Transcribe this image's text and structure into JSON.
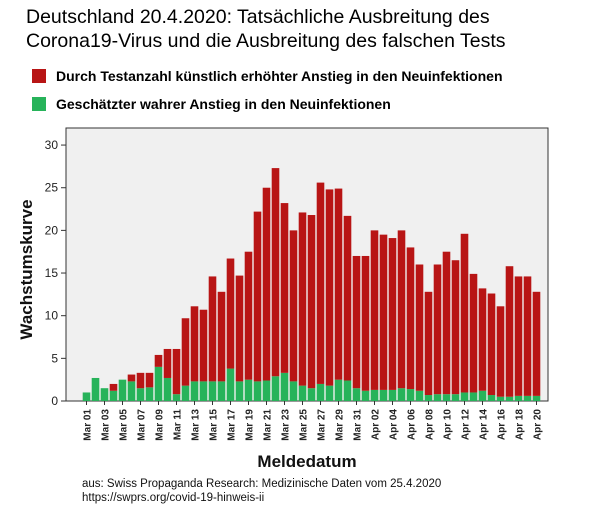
{
  "colors": {
    "red": "#b81515",
    "green": "#27b35a",
    "plot_bg": "#f0f0f0"
  },
  "header": {
    "title_line1": "Deutschland 20.4.2020: Tatsächliche Ausbreitung des",
    "title_line2": "Corona19-Virus und die Ausbreitung des falschen Tests"
  },
  "legend": [
    {
      "label": "Durch Testanzahl künstlich erhöhter Anstieg in den Neuinfektionen",
      "color": "#b81515"
    },
    {
      "label": "Geschätzter wahrer Anstieg in den Neuinfektionen",
      "color": "#27b35a"
    }
  ],
  "source": {
    "line1": "aus: Swiss Propaganda Research: Medizinische Daten vom 25.4.2020",
    "line2": "https://swprs.org/covid-19-hinweis-ii"
  },
  "chart_data": {
    "type": "bar",
    "stacked": true,
    "xlabel": "Meldedatum",
    "ylabel": "Wachstumskurve",
    "ylim": [
      0,
      32
    ],
    "yticks": [
      0,
      5,
      10,
      15,
      20,
      25,
      30
    ],
    "x_tick_labels": [
      "Mar 01",
      "Mar 03",
      "Mar 05",
      "Mar 07",
      "Mar 09",
      "Mar 11",
      "Mar 13",
      "Mar 15",
      "Mar 17",
      "Mar 19",
      "Mar 21",
      "Mar 23",
      "Mar 25",
      "Mar 27",
      "Mar 29",
      "Mar 31",
      "Apr 02",
      "Apr 04",
      "Apr 06",
      "Apr 08",
      "Apr 10",
      "Apr 12",
      "Apr 14",
      "Apr 16",
      "Apr 18",
      "Apr 20"
    ],
    "categories": [
      "Mar 01",
      "Mar 02",
      "Mar 03",
      "Mar 04",
      "Mar 05",
      "Mar 06",
      "Mar 07",
      "Mar 08",
      "Mar 09",
      "Mar 10",
      "Mar 11",
      "Mar 12",
      "Mar 13",
      "Mar 14",
      "Mar 15",
      "Mar 16",
      "Mar 17",
      "Mar 18",
      "Mar 19",
      "Mar 20",
      "Mar 21",
      "Mar 22",
      "Mar 23",
      "Mar 24",
      "Mar 25",
      "Mar 26",
      "Mar 27",
      "Mar 28",
      "Mar 29",
      "Mar 30",
      "Mar 31",
      "Apr 01",
      "Apr 02",
      "Apr 03",
      "Apr 04",
      "Apr 05",
      "Apr 06",
      "Apr 07",
      "Apr 08",
      "Apr 09",
      "Apr 10",
      "Apr 11",
      "Apr 12",
      "Apr 13",
      "Apr 14",
      "Apr 15",
      "Apr 16",
      "Apr 17",
      "Apr 18",
      "Apr 19",
      "Apr 20"
    ],
    "series": [
      {
        "name": "Geschätzter wahrer Anstieg in den Neuinfektionen",
        "color": "#27b35a",
        "values": [
          1.0,
          2.7,
          1.5,
          1.2,
          2.5,
          2.3,
          1.5,
          1.6,
          4.0,
          2.7,
          0.8,
          1.8,
          2.3,
          2.3,
          2.3,
          2.3,
          3.8,
          2.3,
          2.5,
          2.3,
          2.4,
          2.9,
          3.3,
          2.3,
          1.8,
          1.5,
          2.0,
          1.8,
          2.5,
          2.4,
          1.5,
          1.2,
          1.3,
          1.3,
          1.3,
          1.5,
          1.4,
          1.2,
          0.7,
          0.8,
          0.8,
          0.8,
          1.0,
          1.0,
          1.2,
          0.7,
          0.5,
          0.5,
          0.6,
          0.6,
          0.6
        ]
      },
      {
        "name": "Durch Testanzahl künstlich erhöhter Anstieg in den Neuinfektionen",
        "color": "#b81515",
        "values": [
          0.0,
          0.0,
          0.0,
          0.8,
          0.0,
          0.8,
          1.8,
          1.7,
          1.4,
          3.4,
          5.3,
          7.9,
          8.8,
          8.4,
          12.3,
          10.5,
          12.9,
          12.4,
          15.0,
          19.9,
          22.6,
          24.4,
          19.9,
          17.7,
          20.3,
          20.3,
          23.6,
          23.0,
          22.4,
          19.3,
          15.5,
          15.8,
          18.7,
          18.2,
          17.8,
          18.5,
          16.6,
          14.8,
          12.1,
          15.2,
          16.7,
          15.7,
          18.6,
          13.9,
          12.0,
          11.9,
          10.6,
          15.3,
          14.0,
          14.0,
          12.2
        ]
      }
    ],
    "grid": false,
    "legend_position": "top"
  }
}
